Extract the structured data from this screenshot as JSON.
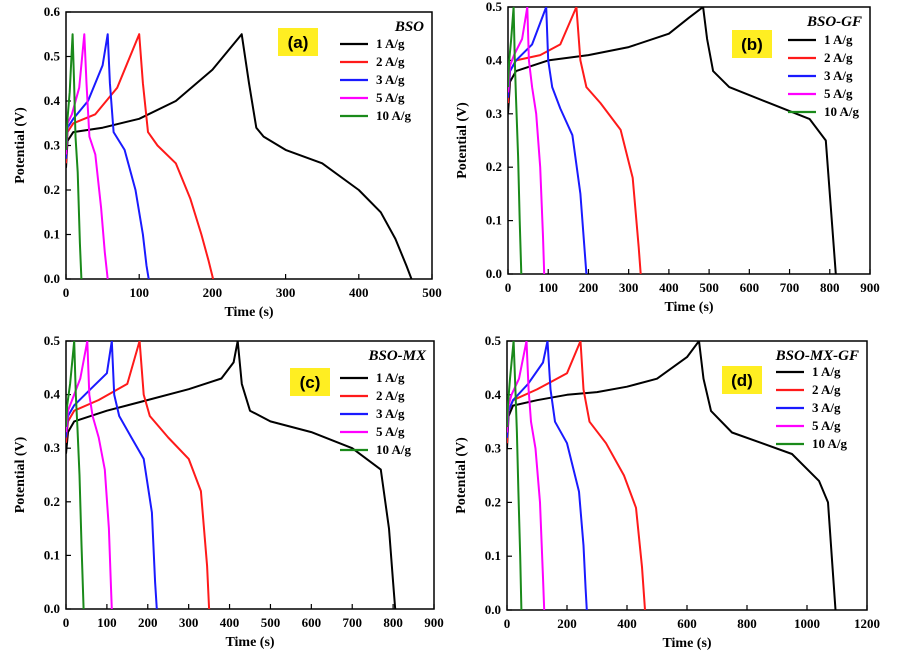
{
  "chart_data": [
    {
      "type": "line",
      "panel_label": "(a)",
      "title": "BSO",
      "xlabel": "Time (s)",
      "ylabel": "Potential (V)",
      "xlim": [
        0,
        500
      ],
      "ylim": [
        0,
        0.6
      ],
      "x_ticks": [
        0,
        100,
        200,
        300,
        400,
        500
      ],
      "y_ticks": [
        0.0,
        0.1,
        0.2,
        0.3,
        0.4,
        0.5,
        0.6
      ],
      "legend_position": "top-right",
      "grid": false,
      "series": [
        {
          "name": "1 A/g",
          "color": "#000000",
          "x": [
            0,
            2,
            10,
            50,
            100,
            150,
            200,
            240,
            250,
            260,
            270,
            300,
            350,
            400,
            430,
            450,
            465,
            472
          ],
          "y": [
            0.25,
            0.31,
            0.33,
            0.34,
            0.36,
            0.4,
            0.47,
            0.55,
            0.44,
            0.34,
            0.32,
            0.29,
            0.26,
            0.2,
            0.15,
            0.09,
            0.03,
            0.0
          ]
        },
        {
          "name": "2 A/g",
          "color": "#ff1a1a",
          "x": [
            0,
            2,
            10,
            40,
            70,
            100,
            105,
            112,
            125,
            150,
            170,
            185,
            195,
            201
          ],
          "y": [
            0.26,
            0.33,
            0.35,
            0.37,
            0.43,
            0.55,
            0.44,
            0.33,
            0.3,
            0.26,
            0.18,
            0.1,
            0.04,
            0.0
          ]
        },
        {
          "name": "3 A/g",
          "color": "#1a1aff",
          "x": [
            0,
            2,
            10,
            30,
            50,
            57,
            60,
            65,
            80,
            95,
            105,
            110,
            113
          ],
          "y": [
            0.27,
            0.34,
            0.36,
            0.4,
            0.48,
            0.55,
            0.44,
            0.33,
            0.29,
            0.2,
            0.1,
            0.03,
            0.0
          ]
        },
        {
          "name": "5 A/g",
          "color": "#ff00ff",
          "x": [
            0,
            2,
            8,
            18,
            25,
            28,
            32,
            40,
            48,
            53,
            57
          ],
          "y": [
            0.28,
            0.35,
            0.37,
            0.43,
            0.55,
            0.44,
            0.32,
            0.28,
            0.16,
            0.06,
            0.0
          ]
        },
        {
          "name": "10 A/g",
          "color": "#1a8a1a",
          "x": [
            0,
            2,
            5,
            9,
            11,
            13,
            16,
            19,
            21
          ],
          "y": [
            0.29,
            0.36,
            0.42,
            0.55,
            0.44,
            0.32,
            0.24,
            0.08,
            0.0
          ]
        }
      ]
    },
    {
      "type": "line",
      "panel_label": "(b)",
      "title": "BSO-GF",
      "xlabel": "Time (s)",
      "ylabel": "Potential (V)",
      "xlim": [
        0,
        900
      ],
      "ylim": [
        0,
        0.5
      ],
      "x_ticks": [
        0,
        100,
        200,
        300,
        400,
        500,
        600,
        700,
        800,
        900
      ],
      "y_ticks": [
        0.0,
        0.1,
        0.2,
        0.3,
        0.4,
        0.5
      ],
      "legend_position": "top-right",
      "grid": false,
      "series": [
        {
          "name": "1 A/g",
          "color": "#000000",
          "x": [
            0,
            5,
            20,
            100,
            200,
            300,
            400,
            450,
            485,
            495,
            510,
            550,
            650,
            750,
            790,
            805,
            815
          ],
          "y": [
            0.3,
            0.36,
            0.38,
            0.4,
            0.41,
            0.425,
            0.45,
            0.48,
            0.5,
            0.44,
            0.38,
            0.35,
            0.32,
            0.29,
            0.25,
            0.1,
            0.0
          ]
        },
        {
          "name": "2 A/g",
          "color": "#ff1a1a",
          "x": [
            0,
            5,
            20,
            80,
            130,
            170,
            180,
            195,
            230,
            280,
            310,
            325,
            330
          ],
          "y": [
            0.32,
            0.38,
            0.4,
            0.41,
            0.43,
            0.5,
            0.4,
            0.35,
            0.32,
            0.27,
            0.18,
            0.05,
            0.0
          ]
        },
        {
          "name": "3 A/g",
          "color": "#1a1aff",
          "x": [
            0,
            5,
            20,
            60,
            95,
            100,
            110,
            130,
            160,
            180,
            190,
            195
          ],
          "y": [
            0.33,
            0.38,
            0.4,
            0.43,
            0.5,
            0.4,
            0.35,
            0.31,
            0.26,
            0.15,
            0.05,
            0.0
          ]
        },
        {
          "name": "5 A/g",
          "color": "#ff00ff",
          "x": [
            0,
            5,
            15,
            35,
            48,
            52,
            60,
            70,
            80,
            87,
            90
          ],
          "y": [
            0.34,
            0.39,
            0.41,
            0.44,
            0.5,
            0.4,
            0.35,
            0.3,
            0.2,
            0.07,
            0.0
          ]
        },
        {
          "name": "10 A/g",
          "color": "#1a8a1a",
          "x": [
            0,
            3,
            8,
            14,
            17,
            20,
            25,
            29,
            33
          ],
          "y": [
            0.35,
            0.4,
            0.44,
            0.5,
            0.4,
            0.33,
            0.22,
            0.1,
            0.0
          ]
        }
      ]
    },
    {
      "type": "line",
      "panel_label": "(c)",
      "title": "BSO-MX",
      "xlabel": "Time (s)",
      "ylabel": "Potential (V)",
      "xlim": [
        0,
        900
      ],
      "ylim": [
        0,
        0.5
      ],
      "x_ticks": [
        0,
        100,
        200,
        300,
        400,
        500,
        600,
        700,
        800,
        900
      ],
      "y_ticks": [
        0.0,
        0.1,
        0.2,
        0.3,
        0.4,
        0.5
      ],
      "legend_position": "top-right",
      "grid": false,
      "series": [
        {
          "name": "1 A/g",
          "color": "#000000",
          "x": [
            0,
            5,
            20,
            100,
            200,
            300,
            380,
            410,
            420,
            430,
            450,
            500,
            600,
            700,
            770,
            790,
            800,
            805
          ],
          "y": [
            0.29,
            0.33,
            0.35,
            0.37,
            0.39,
            0.41,
            0.43,
            0.46,
            0.5,
            0.42,
            0.37,
            0.35,
            0.33,
            0.3,
            0.26,
            0.15,
            0.05,
            0.0
          ]
        },
        {
          "name": "2 A/g",
          "color": "#ff1a1a",
          "x": [
            0,
            5,
            20,
            80,
            150,
            180,
            190,
            205,
            250,
            300,
            330,
            345,
            350
          ],
          "y": [
            0.31,
            0.35,
            0.37,
            0.39,
            0.42,
            0.5,
            0.4,
            0.36,
            0.32,
            0.28,
            0.22,
            0.08,
            0.0
          ]
        },
        {
          "name": "3 A/g",
          "color": "#1a1aff",
          "x": [
            0,
            5,
            20,
            60,
            100,
            112,
            118,
            130,
            160,
            190,
            210,
            218,
            222
          ],
          "y": [
            0.32,
            0.36,
            0.38,
            0.41,
            0.44,
            0.5,
            0.4,
            0.36,
            0.32,
            0.28,
            0.18,
            0.05,
            0.0
          ]
        },
        {
          "name": "5 A/g",
          "color": "#ff00ff",
          "x": [
            0,
            5,
            15,
            35,
            52,
            57,
            65,
            80,
            95,
            105,
            110,
            112
          ],
          "y": [
            0.33,
            0.37,
            0.39,
            0.43,
            0.5,
            0.4,
            0.36,
            0.32,
            0.26,
            0.15,
            0.04,
            0.0
          ]
        },
        {
          "name": "10 A/g",
          "color": "#1a8a1a",
          "x": [
            0,
            3,
            10,
            20,
            24,
            28,
            33,
            38,
            43
          ],
          "y": [
            0.34,
            0.38,
            0.42,
            0.5,
            0.4,
            0.34,
            0.25,
            0.12,
            0.0
          ]
        }
      ]
    },
    {
      "type": "line",
      "panel_label": "(d)",
      "title": "BSO-MX-GF",
      "xlabel": "Time (s)",
      "ylabel": "Potential (V)",
      "xlim": [
        0,
        1200
      ],
      "ylim": [
        0,
        0.5
      ],
      "x_ticks": [
        0,
        200,
        400,
        600,
        800,
        1000,
        1200
      ],
      "y_ticks": [
        0.0,
        0.1,
        0.2,
        0.3,
        0.4,
        0.5
      ],
      "legend_position": "top-right",
      "grid": false,
      "series": [
        {
          "name": "1 A/g",
          "color": "#000000",
          "x": [
            0,
            5,
            20,
            100,
            200,
            300,
            400,
            500,
            600,
            640,
            655,
            680,
            750,
            850,
            950,
            1040,
            1070,
            1085,
            1095
          ],
          "y": [
            0.3,
            0.36,
            0.38,
            0.39,
            0.4,
            0.405,
            0.415,
            0.43,
            0.47,
            0.5,
            0.43,
            0.37,
            0.33,
            0.31,
            0.29,
            0.24,
            0.2,
            0.08,
            0.0
          ]
        },
        {
          "name": "2 A/g",
          "color": "#ff1a1a",
          "x": [
            0,
            5,
            20,
            100,
            200,
            245,
            255,
            275,
            330,
            390,
            430,
            450,
            460
          ],
          "y": [
            0.31,
            0.37,
            0.39,
            0.41,
            0.44,
            0.5,
            0.41,
            0.35,
            0.31,
            0.25,
            0.19,
            0.08,
            0.0
          ]
        },
        {
          "name": "3 A/g",
          "color": "#1a1aff",
          "x": [
            0,
            5,
            20,
            70,
            120,
            135,
            145,
            160,
            200,
            240,
            255,
            262,
            266
          ],
          "y": [
            0.32,
            0.37,
            0.39,
            0.42,
            0.46,
            0.5,
            0.41,
            0.35,
            0.31,
            0.22,
            0.12,
            0.04,
            0.0
          ]
        },
        {
          "name": "5 A/g",
          "color": "#ff00ff",
          "x": [
            0,
            5,
            15,
            40,
            65,
            72,
            80,
            95,
            110,
            120,
            124
          ],
          "y": [
            0.33,
            0.38,
            0.4,
            0.43,
            0.5,
            0.41,
            0.35,
            0.3,
            0.2,
            0.06,
            0.0
          ]
        },
        {
          "name": "10 A/g",
          "color": "#1a8a1a",
          "x": [
            0,
            3,
            10,
            22,
            28,
            33,
            38,
            44,
            48
          ],
          "y": [
            0.34,
            0.38,
            0.43,
            0.5,
            0.41,
            0.33,
            0.22,
            0.1,
            0.0
          ]
        }
      ]
    }
  ]
}
